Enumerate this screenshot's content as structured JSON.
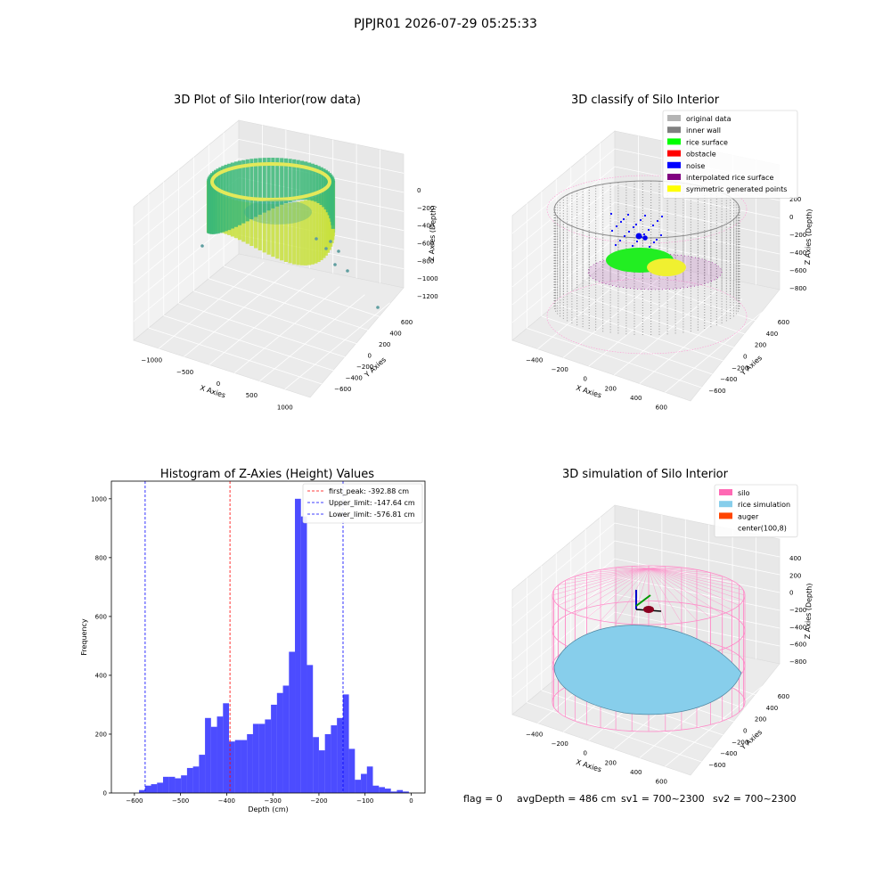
{
  "figure_title": "PJPJR01 2026-07-29 05:25:33",
  "status": {
    "flag": "flag = 0",
    "avg_depth": "avgDepth = 486 cm",
    "sv1": "sv1 = 700~2300",
    "sv2": "sv2 = 700~2300"
  },
  "panels": {
    "raw": {
      "title": "3D Plot of Silo Interior(row data)",
      "xlabel": "X Axies",
      "ylabel": "Y Axies",
      "zlabel": "Z Axies (Depth)",
      "xticks": [
        "−1000",
        "−500",
        "0",
        "500",
        "1000"
      ],
      "yticks": [
        "−600",
        "−400",
        "−200",
        "0",
        "200",
        "400",
        "600"
      ],
      "zticks": [
        "0",
        "−200",
        "−400",
        "−600",
        "−800",
        "−1000",
        "−1200"
      ]
    },
    "classify": {
      "title": "3D classify of Silo Interior",
      "xlabel": "X Axies",
      "ylabel": "Y Axies",
      "zlabel": "Z Axies (Depth)",
      "xticks": [
        "−400",
        "−200",
        "0",
        "200",
        "400",
        "600"
      ],
      "yticks": [
        "−600",
        "−400",
        "−200",
        "0",
        "200",
        "400",
        "600"
      ],
      "zticks": [
        "200",
        "0",
        "−200",
        "−400",
        "−600",
        "−800"
      ],
      "legend": [
        {
          "label": "original data",
          "color": "#b4b4b4"
        },
        {
          "label": "inner wall",
          "color": "#808080"
        },
        {
          "label": "rice surface",
          "color": "#00ff00"
        },
        {
          "label": "obstacle",
          "color": "#ff0000"
        },
        {
          "label": "noise",
          "color": "#0000ff"
        },
        {
          "label": "interpolated rice surface",
          "color": "#800080"
        },
        {
          "label": "symmetric generated points",
          "color": "#ffff00"
        }
      ]
    },
    "simulation": {
      "title": "3D simulation of Silo Interior",
      "xlabel": "X Axies",
      "ylabel": "Y Axies",
      "zlabel": "Z Axies (Depth)",
      "xticks": [
        "−400",
        "−200",
        "0",
        "200",
        "400",
        "600"
      ],
      "yticks": [
        "−600",
        "−400",
        "−200",
        "0",
        "200",
        "400",
        "600"
      ],
      "zticks": [
        "400",
        "200",
        "0",
        "−200",
        "−400",
        "−600",
        "−800"
      ],
      "legend": [
        {
          "label": "silo",
          "color": "#ff69b4"
        },
        {
          "label": "rice simulation",
          "color": "#87ceeb"
        },
        {
          "label": "auger",
          "color": "#ff4500"
        },
        {
          "label": "center(100,8)",
          "color": ""
        }
      ]
    }
  },
  "chart_data": [
    {
      "type": "bar",
      "title": "Histogram of Z-Axies (Height) Values",
      "xlabel": "Depth (cm)",
      "ylabel": "Frequency",
      "xlim": [
        -650,
        30
      ],
      "ylim": [
        0,
        1060
      ],
      "xticks": [
        "−600",
        "−500",
        "−400",
        "−300",
        "−200",
        "−100",
        "0"
      ],
      "yticks": [
        "0",
        "200",
        "400",
        "600",
        "800",
        "1000"
      ],
      "bar_color": "#0000ff",
      "bin_edges": [
        -590,
        -577,
        -564,
        -551,
        -538,
        -525,
        -512,
        -499,
        -486,
        -473,
        -460,
        -447,
        -434,
        -421,
        -408,
        -395,
        -382,
        -369,
        -356,
        -343,
        -330,
        -317,
        -304,
        -291,
        -278,
        -265,
        -252,
        -239,
        -226,
        -213,
        -200,
        -187,
        -174,
        -161,
        -148,
        -135,
        -122,
        -109,
        -96,
        -83,
        -70,
        -57,
        -44,
        -31,
        -18,
        -5
      ],
      "values": [
        10,
        25,
        30,
        35,
        55,
        55,
        50,
        60,
        85,
        90,
        130,
        255,
        225,
        260,
        305,
        175,
        180,
        180,
        200,
        235,
        235,
        250,
        300,
        340,
        365,
        480,
        1000,
        940,
        435,
        190,
        145,
        200,
        230,
        255,
        335,
        150,
        45,
        65,
        90,
        25,
        20,
        15,
        5,
        10,
        5
      ],
      "vlines": [
        {
          "label": "first_peak: -392.88 cm",
          "x": -392.88,
          "color": "#ff0000"
        },
        {
          "label": "Upper_limit: -147.64 cm",
          "x": -147.64,
          "color": "#0000ff"
        },
        {
          "label": "Lower_limit: -576.81 cm",
          "x": -576.81,
          "color": "#0000ff"
        }
      ],
      "legend_loc": "upper right"
    }
  ]
}
